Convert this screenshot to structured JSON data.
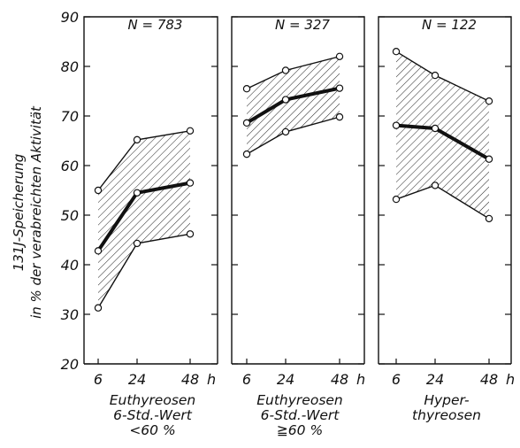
{
  "chart_data": {
    "type": "line",
    "ylabel_line1": "131J-Speicherung",
    "ylabel_line2": "in % der verabreichten Aktivität",
    "ylim": [
      20,
      90
    ],
    "yticks": [
      20,
      30,
      40,
      50,
      60,
      70,
      80,
      90
    ],
    "x_unit": "h",
    "grid": false,
    "band": "hatched area between upper and lower curve",
    "panels": [
      {
        "n_label": "N = 783",
        "x": [
          6,
          24,
          48
        ],
        "x_labels": [
          "6",
          "24",
          "48"
        ],
        "group_label": [
          "Euthyreosen",
          "6-Std.-Wert",
          "<60 %"
        ],
        "series": [
          {
            "role": "upper",
            "values": [
              55,
              65.2,
              67
            ]
          },
          {
            "role": "mean",
            "values": [
              42.8,
              54.5,
              56.5
            ]
          },
          {
            "role": "lower",
            "values": [
              31.3,
              44.3,
              46.2
            ]
          }
        ]
      },
      {
        "n_label": "N = 327",
        "x": [
          6,
          24,
          48
        ],
        "x_labels": [
          "6",
          "24",
          "48"
        ],
        "group_label": [
          "Euthyreosen",
          "6-Std.-Wert",
          "≧60 %"
        ],
        "series": [
          {
            "role": "upper",
            "values": [
              75.5,
              79.2,
              82
            ]
          },
          {
            "role": "mean",
            "values": [
              68.6,
              73.3,
              75.6
            ]
          },
          {
            "role": "lower",
            "values": [
              62.3,
              66.8,
              69.8
            ]
          }
        ]
      },
      {
        "n_label": "N = 122",
        "x": [
          6,
          24,
          48
        ],
        "x_labels": [
          "6",
          "24",
          "48"
        ],
        "group_label": [
          "Hyper-",
          "thyreosen",
          ""
        ],
        "series": [
          {
            "role": "upper",
            "values": [
              83,
              78.2,
              73
            ]
          },
          {
            "role": "mean",
            "values": [
              68.1,
              67.5,
              61.3
            ]
          },
          {
            "role": "lower",
            "values": [
              53.2,
              56,
              49.3
            ]
          }
        ]
      }
    ]
  }
}
